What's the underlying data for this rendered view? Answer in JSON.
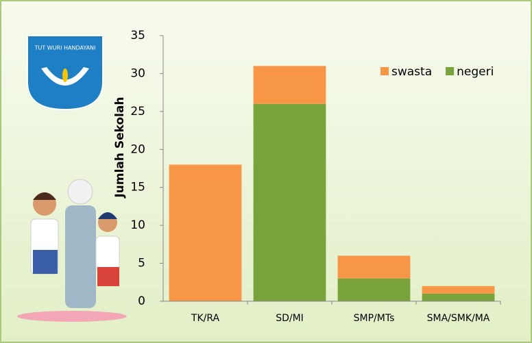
{
  "chart_data": {
    "type": "stacked_bar",
    "logo_text": "TUT WURI HANDAYANI",
    "y_label": "Jumlah Sekolah",
    "categories": [
      "TK/RA",
      "SD/MI",
      "SMP/MTs",
      "SMA/SMK/MA"
    ],
    "series": [
      {
        "name": "swasta",
        "color": "#f79646",
        "values": [
          18,
          5,
          3,
          1
        ]
      },
      {
        "name": "negeri",
        "color": "#77a33a",
        "values": [
          0,
          26,
          3,
          1
        ]
      }
    ],
    "ylim": [
      0,
      35
    ],
    "yticks": [
      0,
      5,
      10,
      15,
      20,
      25,
      30,
      35
    ],
    "legend": "top-right"
  }
}
